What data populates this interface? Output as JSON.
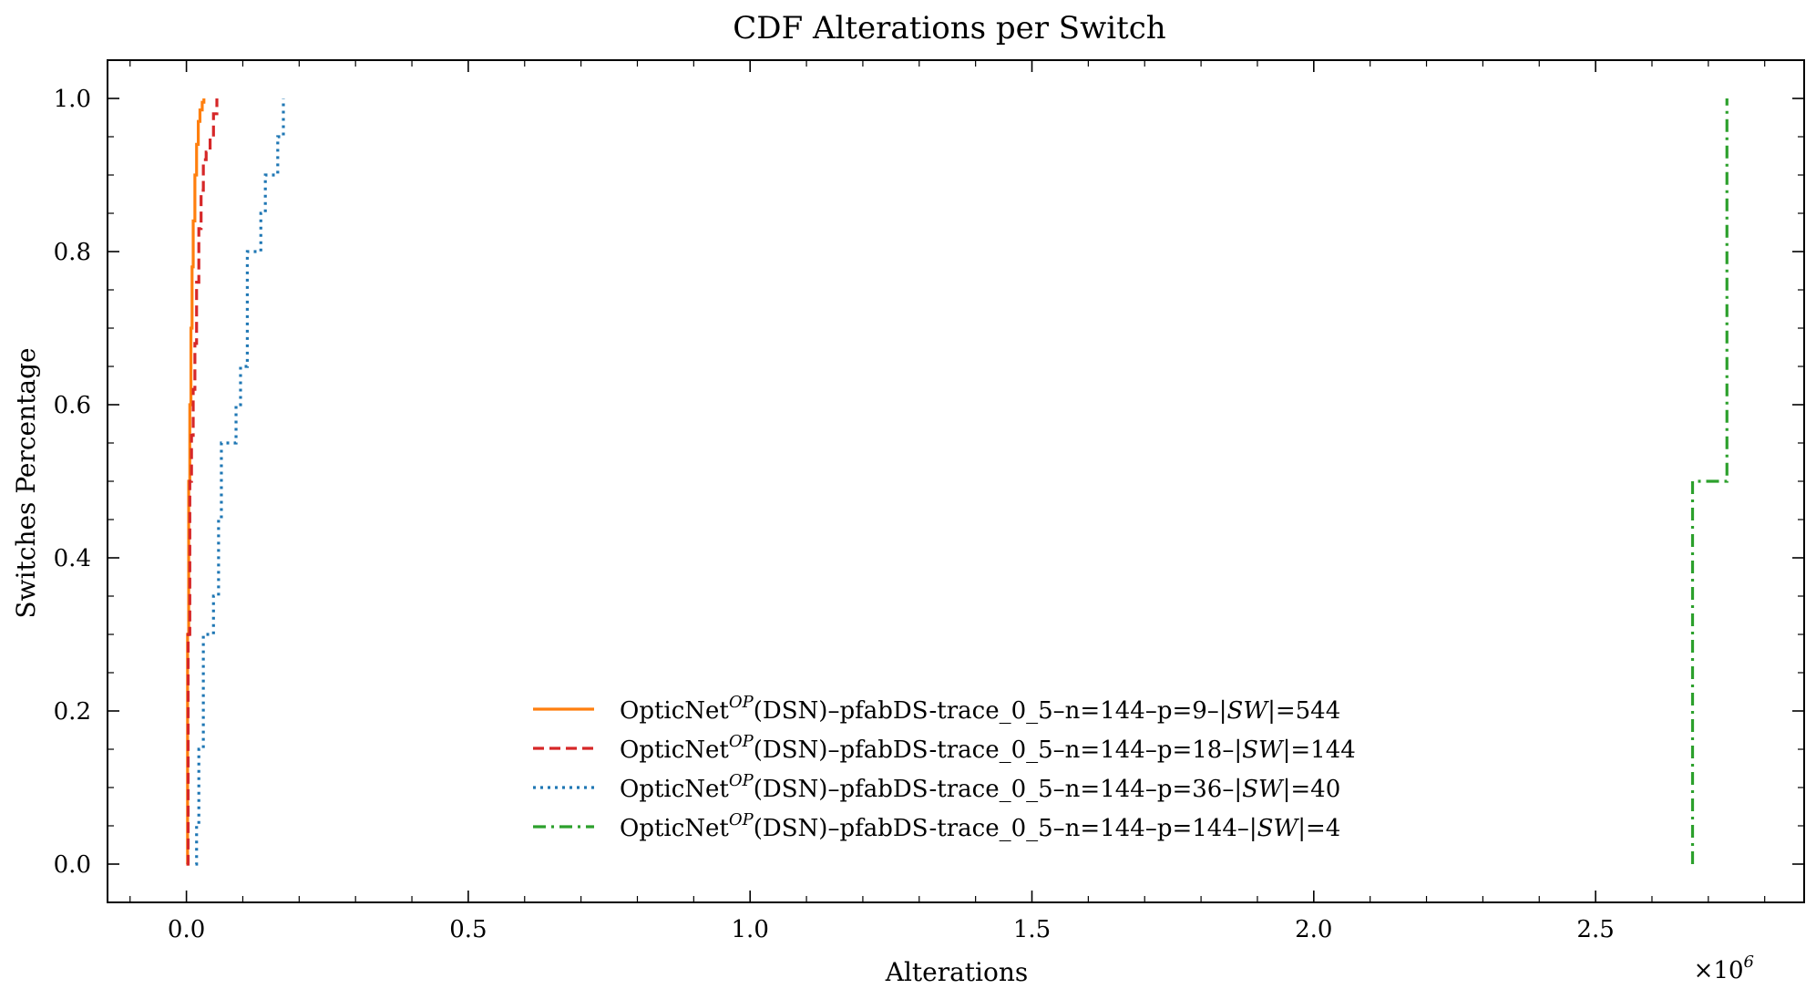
{
  "chart_data": {
    "type": "line",
    "title": "CDF Alterations per Switch",
    "xlabel": "Alterations",
    "ylabel": "Switches Percentage",
    "x_scale_label": "×10",
    "x_scale_exponent": "6",
    "xlim": [
      -0.14,
      2.87
    ],
    "ylim": [
      -0.05,
      1.05
    ],
    "x_ticks": [
      0.0,
      0.5,
      1.0,
      1.5,
      2.0,
      2.5
    ],
    "x_tick_labels": [
      "0.0",
      "0.5",
      "1.0",
      "1.5",
      "2.0",
      "2.5"
    ],
    "y_ticks": [
      0.0,
      0.2,
      0.4,
      0.6,
      0.8,
      1.0
    ],
    "y_tick_labels": [
      "0.0",
      "0.2",
      "0.4",
      "0.6",
      "0.8",
      "1.0"
    ],
    "grid": false,
    "legend_position": "bottom-center",
    "series": [
      {
        "name": "OpticNetOP(DSN)–pfabDS-trace_0_5–n=144–p=9–|SW|=544",
        "legend_prefix": "OpticNet",
        "legend_sup": "OP",
        "legend_mid": "(DSN)–pfabDS-trace_0_5–n=144–p=9–|",
        "legend_ital": "SW",
        "legend_suffix": "|=544",
        "color": "#ff7f0e",
        "style": "solid",
        "x": [
          0.0,
          0.002,
          0.004,
          0.006,
          0.008,
          0.01,
          0.012,
          0.015,
          0.018,
          0.021,
          0.024,
          0.028,
          0.031
        ],
        "y": [
          0.0,
          0.3,
          0.5,
          0.6,
          0.7,
          0.78,
          0.84,
          0.9,
          0.94,
          0.97,
          0.985,
          0.995,
          1.0
        ]
      },
      {
        "name": "OpticNetOP(DSN)–pfabDS-trace_0_5–n=144–p=18–|SW|=144",
        "legend_prefix": "OpticNet",
        "legend_sup": "OP",
        "legend_mid": "(DSN)–pfabDS-trace_0_5–n=144–p=18–|",
        "legend_ital": "SW",
        "legend_suffix": "|=144",
        "color": "#d62728",
        "style": "dashed",
        "x": [
          0.0,
          0.003,
          0.006,
          0.009,
          0.012,
          0.015,
          0.018,
          0.022,
          0.026,
          0.03,
          0.035,
          0.042,
          0.048,
          0.054
        ],
        "y": [
          0.0,
          0.3,
          0.5,
          0.56,
          0.62,
          0.68,
          0.76,
          0.83,
          0.88,
          0.92,
          0.93,
          0.95,
          0.98,
          1.0
        ]
      },
      {
        "name": "OpticNetOP(DSN)–pfabDS-trace_0_5–n=144–p=36–|SW|=40",
        "legend_prefix": "OpticNet",
        "legend_sup": "OP",
        "legend_mid": "(DSN)–pfabDS-trace_0_5–n=144–p=36–|",
        "legend_ital": "SW",
        "legend_suffix": "|=40",
        "color": "#1f77b4",
        "style": "dotted",
        "x": [
          0.016,
          0.018,
          0.022,
          0.03,
          0.042,
          0.048,
          0.057,
          0.062,
          0.077,
          0.088,
          0.096,
          0.108,
          0.118,
          0.132,
          0.14,
          0.152,
          0.162,
          0.172
        ],
        "y": [
          0.0,
          0.05,
          0.15,
          0.3,
          0.3,
          0.35,
          0.45,
          0.55,
          0.55,
          0.6,
          0.65,
          0.8,
          0.8,
          0.85,
          0.9,
          0.9,
          0.95,
          1.0
        ]
      },
      {
        "name": "OpticNetOP(DSN)–pfabDS-trace_0_5–n=144–p=144–|SW|=4",
        "legend_prefix": "OpticNet",
        "legend_sup": "OP",
        "legend_mid": "(DSN)–pfabDS-trace_0_5–n=144–p=144–|",
        "legend_ital": "SW",
        "legend_suffix": "|=4",
        "color": "#2ca02c",
        "style": "dashdot",
        "x": [
          2.672,
          2.672,
          2.733,
          2.733,
          2.733
        ],
        "y": [
          0.0,
          0.5,
          0.5,
          0.75,
          1.0
        ]
      }
    ]
  }
}
